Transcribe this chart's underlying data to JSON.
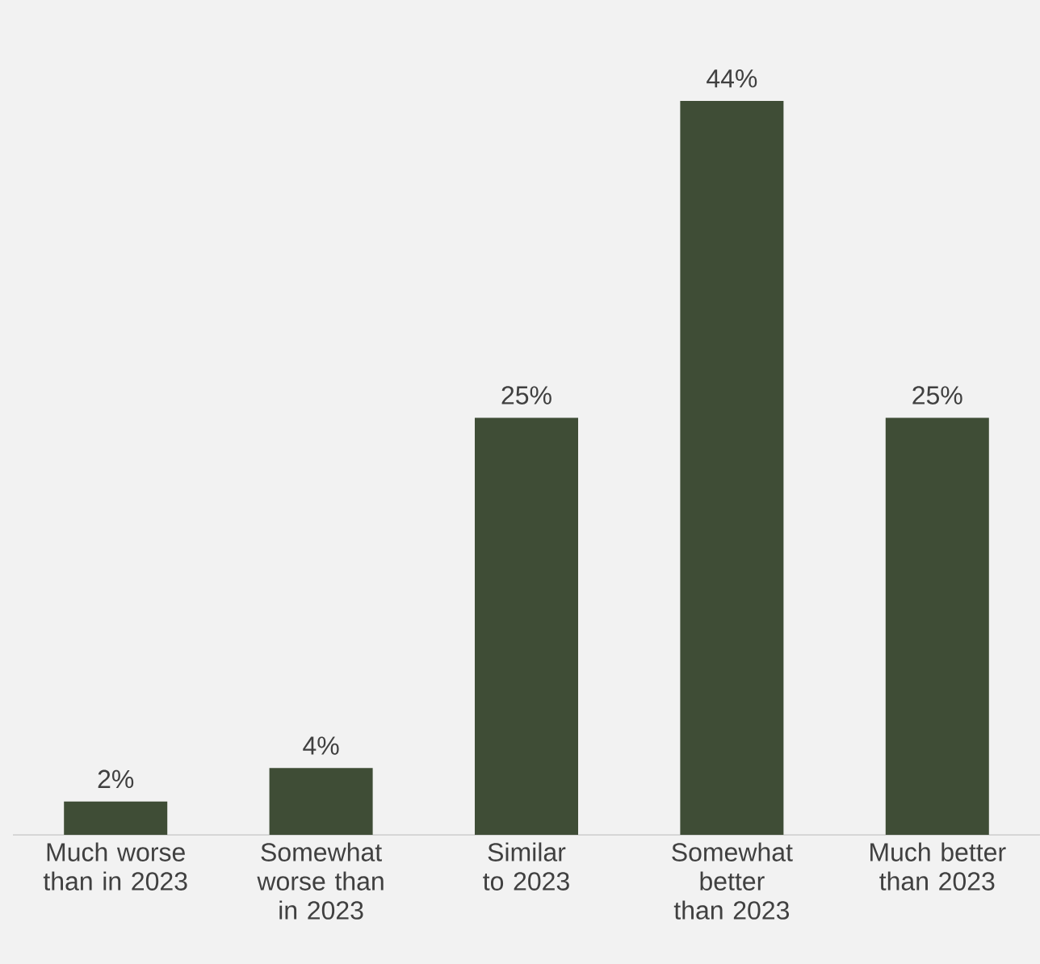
{
  "chart_data": {
    "type": "bar",
    "categories": [
      "Much worse than in 2023",
      "Somewhat worse than in 2023",
      "Similar to 2023",
      "Somewhat better than 2023",
      "Much better than 2023"
    ],
    "values": [
      2,
      4,
      25,
      44,
      25
    ],
    "value_labels": [
      "2%",
      "4%",
      "25%",
      "44%",
      "25%"
    ],
    "color": "#3f4d36"
  }
}
